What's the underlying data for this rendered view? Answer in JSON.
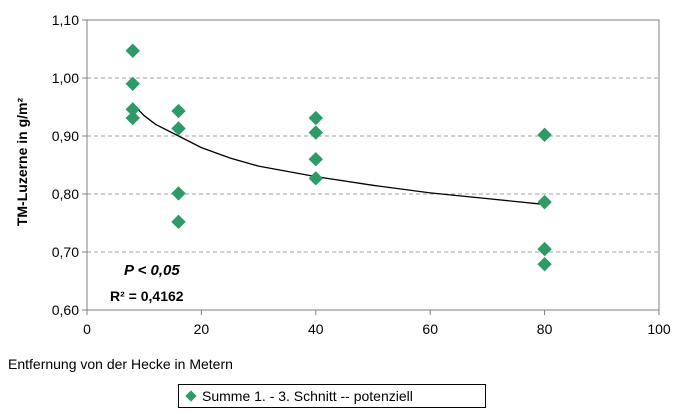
{
  "chart_data": {
    "type": "scatter",
    "xlabel": "Entfernung von der Hecke in Metern",
    "ylabel": "TM-Luzerne in g/m²",
    "xlim": [
      0,
      100
    ],
    "ylim": [
      0.6,
      1.1
    ],
    "x_ticks": [
      "0",
      "20",
      "40",
      "60",
      "80",
      "100"
    ],
    "y_ticks": [
      "0,60",
      "0,70",
      "0,80",
      "0,90",
      "1,00",
      "1,10"
    ],
    "grid": "horizontal dashed",
    "legend_position": "bottom",
    "series": [
      {
        "name": "Summe 1. - 3. Schnitt -- potenziell",
        "color": "#2e9a68",
        "marker": "diamond",
        "points": [
          {
            "x": 8,
            "y": 1.047
          },
          {
            "x": 8,
            "y": 0.99
          },
          {
            "x": 8,
            "y": 0.946
          },
          {
            "x": 8,
            "y": 0.931
          },
          {
            "x": 16,
            "y": 0.943
          },
          {
            "x": 16,
            "y": 0.913
          },
          {
            "x": 16,
            "y": 0.801
          },
          {
            "x": 16,
            "y": 0.752
          },
          {
            "x": 40,
            "y": 0.931
          },
          {
            "x": 40,
            "y": 0.906
          },
          {
            "x": 40,
            "y": 0.86
          },
          {
            "x": 40,
            "y": 0.827
          },
          {
            "x": 80,
            "y": 0.902
          },
          {
            "x": 80,
            "y": 0.786
          },
          {
            "x": 80,
            "y": 0.705
          },
          {
            "x": 80,
            "y": 0.679
          }
        ]
      }
    ],
    "trendline": {
      "type": "power",
      "color": "#000000",
      "points": [
        {
          "x": 8,
          "y": 0.955
        },
        {
          "x": 10,
          "y": 0.935
        },
        {
          "x": 12,
          "y": 0.92
        },
        {
          "x": 16,
          "y": 0.9
        },
        {
          "x": 20,
          "y": 0.88
        },
        {
          "x": 25,
          "y": 0.862
        },
        {
          "x": 30,
          "y": 0.848
        },
        {
          "x": 40,
          "y": 0.83
        },
        {
          "x": 50,
          "y": 0.815
        },
        {
          "x": 60,
          "y": 0.802
        },
        {
          "x": 70,
          "y": 0.792
        },
        {
          "x": 80,
          "y": 0.782
        }
      ]
    },
    "annotations": {
      "p_value": "P < 0,05",
      "r_squared": "R² = 0,4162"
    }
  }
}
